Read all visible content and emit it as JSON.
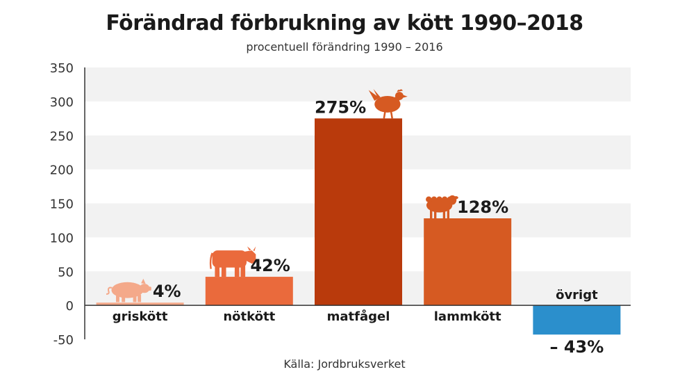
{
  "chart_data": {
    "type": "bar",
    "title": "Förändrad förbrukning av kött 1990–2018",
    "subtitle": "procentuell förändring 1990 – 2016",
    "source": "Källa: Jordbruksverket",
    "categories": [
      "griskött",
      "nötkött",
      "matfågel",
      "lammkött",
      "övrigt"
    ],
    "values": [
      4,
      42,
      275,
      128,
      -43
    ],
    "value_labels": [
      "4%",
      "42%",
      "275%",
      "128%",
      "– 43%"
    ],
    "icons": [
      "pig-icon",
      "cow-icon",
      "chicken-icon",
      "sheep-icon",
      ""
    ],
    "colors": [
      "#f4a98a",
      "#ea6a3c",
      "#b93a0c",
      "#d65a22",
      "#2b8fcc"
    ],
    "icon_colors": [
      "#f4a98a",
      "#ea6a3c",
      "#d65a22",
      "#d65a22",
      ""
    ],
    "ylim": [
      -50,
      350
    ],
    "yticks": [
      350,
      300,
      250,
      200,
      150,
      100,
      50,
      0,
      -50
    ],
    "grid": "alternating horizontal bands",
    "xlabel": "",
    "ylabel": ""
  }
}
